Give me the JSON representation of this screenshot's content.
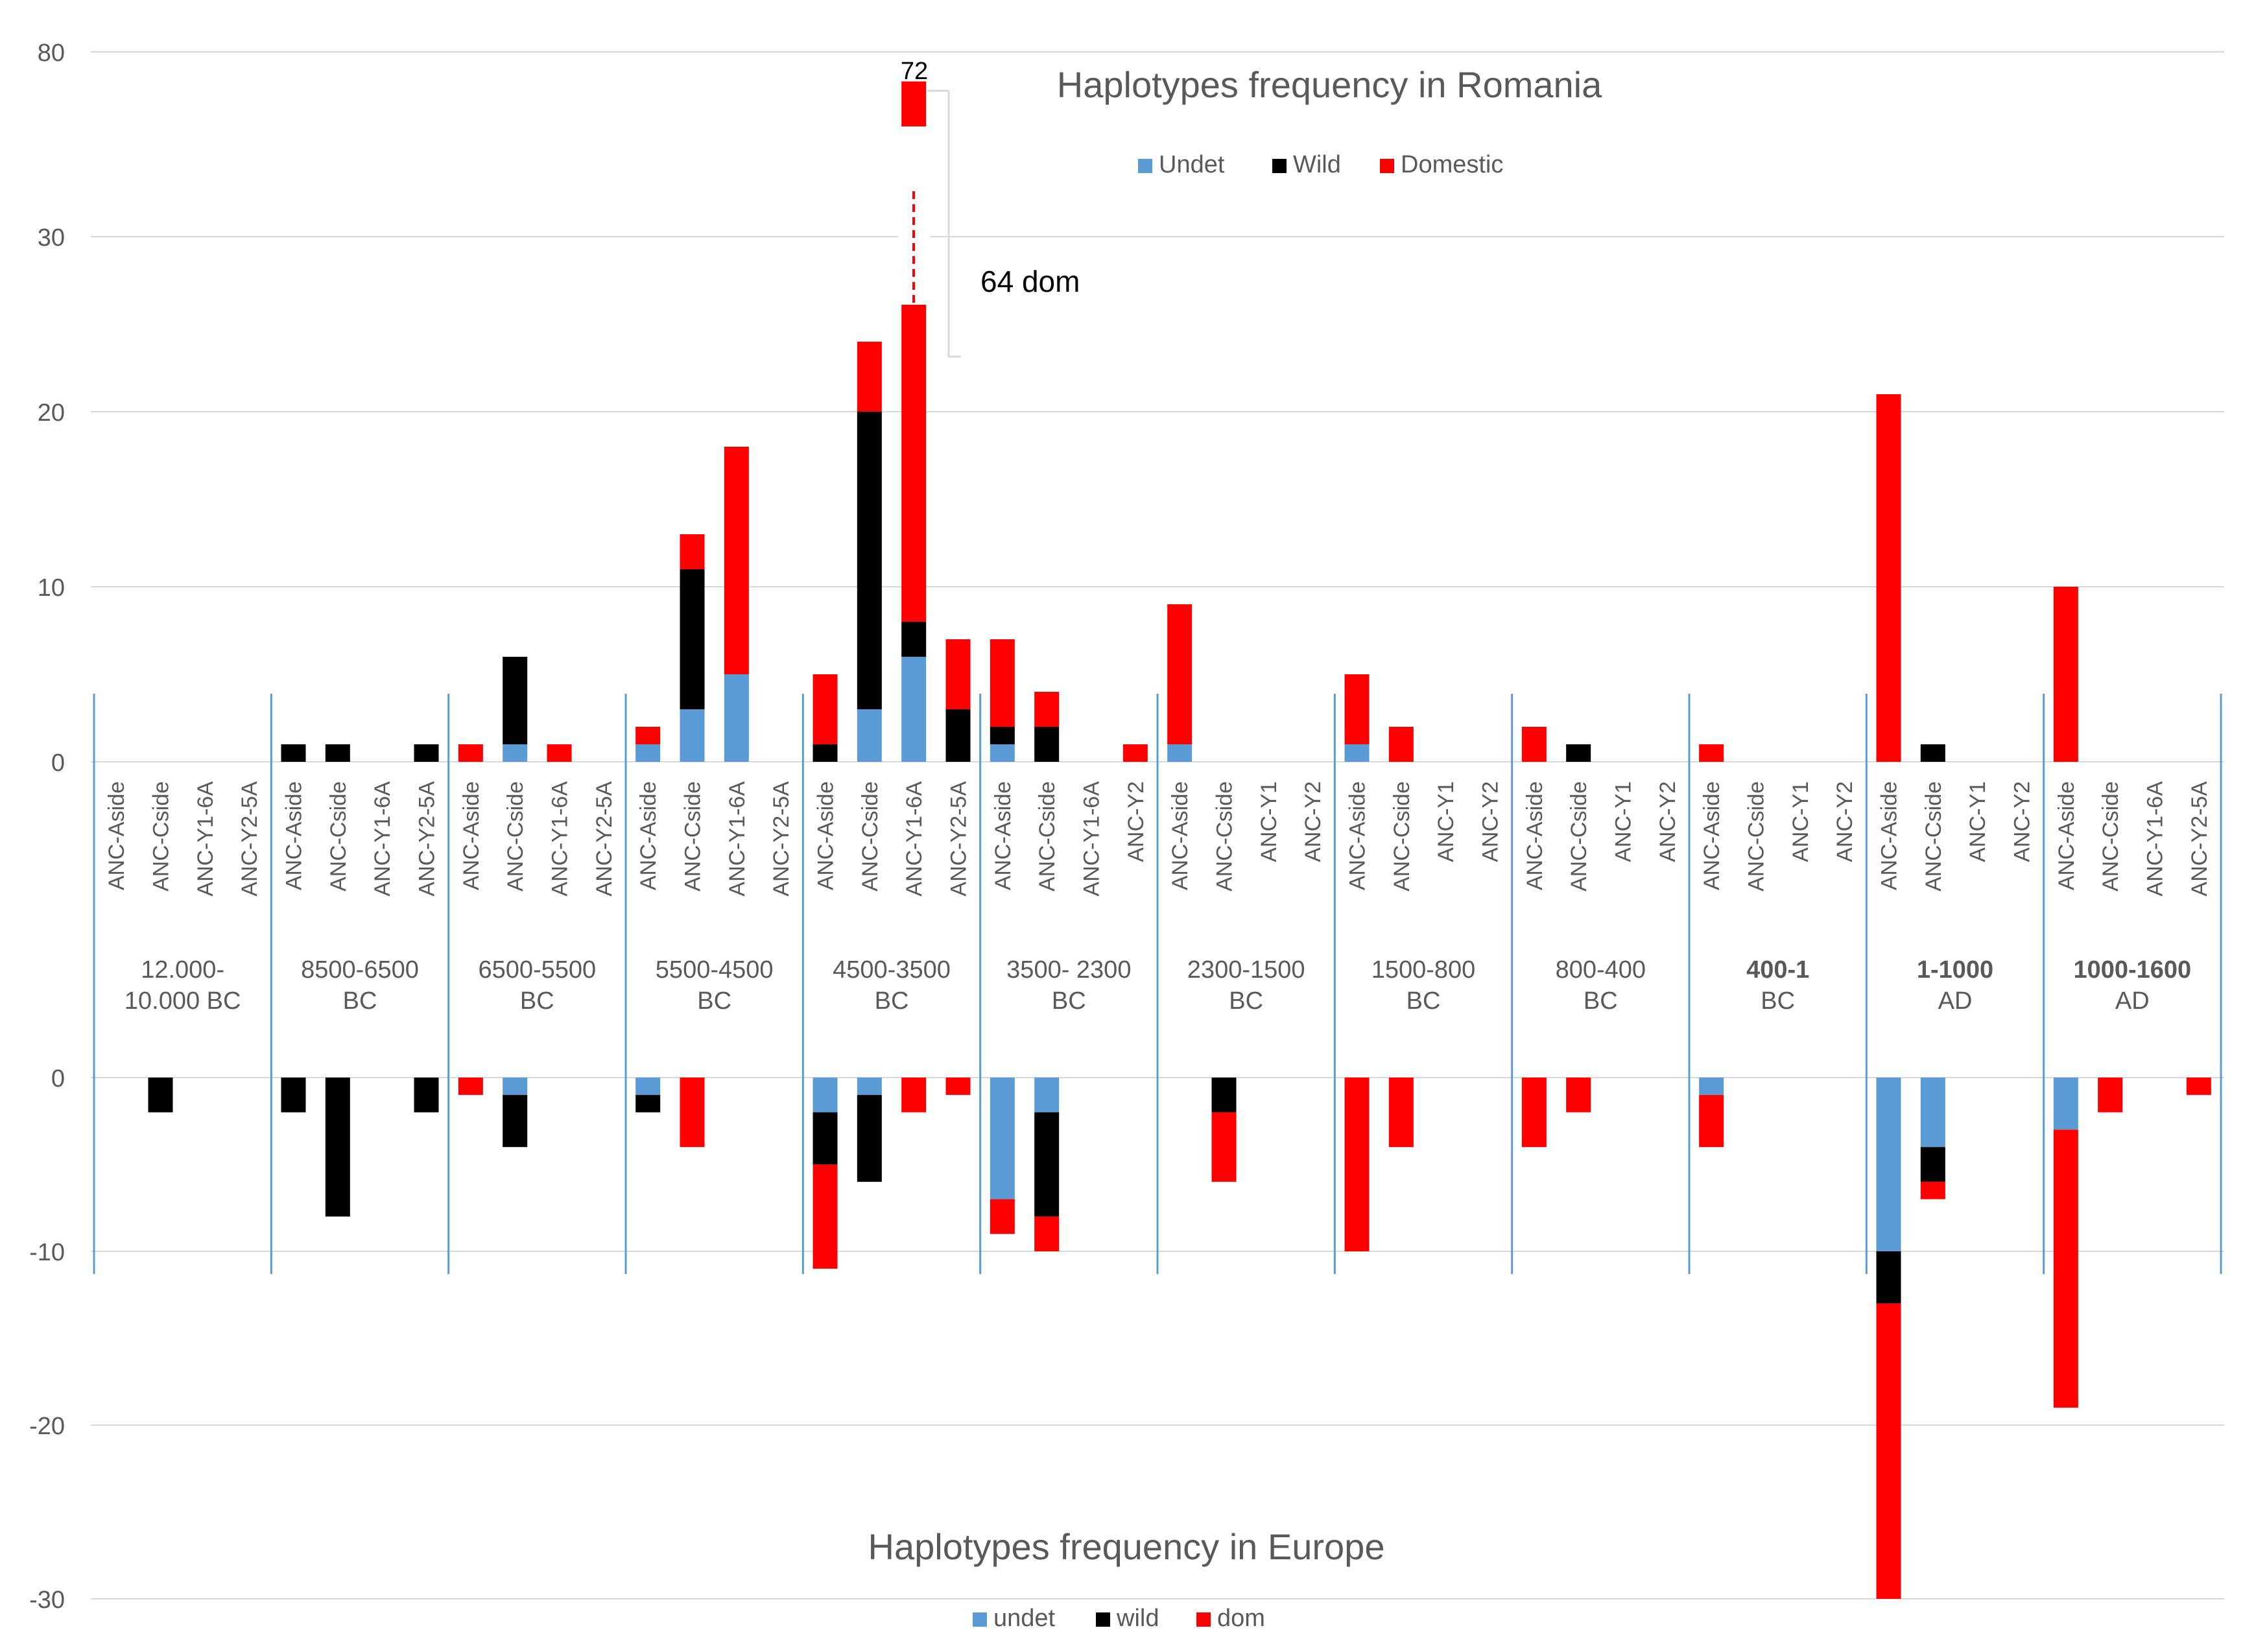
{
  "chart_data": {
    "type": "bar",
    "stacked": true,
    "colors": {
      "undet": "#5b9bd5",
      "wild": "#000000",
      "dom": "#ff0000"
    },
    "periods": [
      {
        "label": [
          "12.000-",
          "10.000 BC"
        ],
        "bold": false,
        "categories": [
          "ANC-Aside",
          "ANC-Cside",
          "ANC-Y1-6A",
          "ANC-Y2-5A"
        ],
        "romania": [
          [
            0,
            0,
            0
          ],
          [
            0,
            0,
            0
          ],
          [
            0,
            0,
            0
          ],
          [
            0,
            0,
            0
          ]
        ],
        "europe": [
          [
            0,
            0,
            0
          ],
          [
            0,
            2,
            0
          ],
          [
            0,
            0,
            0
          ],
          [
            0,
            0,
            0
          ]
        ]
      },
      {
        "label": [
          "8500-6500",
          "BC"
        ],
        "bold": false,
        "categories": [
          "ANC-Aside",
          "ANC-Cside",
          "ANC-Y1-6A",
          "ANC-Y2-5A"
        ],
        "romania": [
          [
            0,
            1,
            0
          ],
          [
            0,
            1,
            0
          ],
          [
            0,
            0,
            0
          ],
          [
            0,
            1,
            0
          ]
        ],
        "europe": [
          [
            0,
            2,
            0
          ],
          [
            0,
            8,
            0
          ],
          [
            0,
            0,
            0
          ],
          [
            0,
            2,
            0
          ]
        ]
      },
      {
        "label": [
          "6500-5500",
          "BC"
        ],
        "bold": false,
        "categories": [
          "ANC-Aside",
          "ANC-Cside",
          "ANC-Y1-6A",
          "ANC-Y2-5A"
        ],
        "romania": [
          [
            0,
            0,
            1
          ],
          [
            1,
            5,
            0
          ],
          [
            0,
            0,
            1
          ],
          [
            0,
            0,
            0
          ]
        ],
        "europe": [
          [
            0,
            0,
            1
          ],
          [
            1,
            3,
            0
          ],
          [
            0,
            0,
            0
          ],
          [
            0,
            0,
            0
          ]
        ]
      },
      {
        "label": [
          "5500-4500",
          "BC"
        ],
        "bold": false,
        "categories": [
          "ANC-Aside",
          "ANC-Cside",
          "ANC-Y1-6A",
          "ANC-Y2-5A"
        ],
        "romania": [
          [
            1,
            0,
            1
          ],
          [
            3,
            8,
            2
          ],
          [
            5,
            0,
            13
          ],
          [
            0,
            0,
            0
          ]
        ],
        "europe": [
          [
            1,
            1,
            0
          ],
          [
            0,
            0,
            4
          ],
          [
            0,
            0,
            0
          ],
          [
            0,
            0,
            0
          ]
        ]
      },
      {
        "label": [
          "4500-3500",
          "BC"
        ],
        "bold": false,
        "categories": [
          "ANC-Aside",
          "ANC-Cside",
          "ANC-Y1-6A",
          "ANC-Y2-5A"
        ],
        "romania": [
          [
            0,
            1,
            4
          ],
          [
            3,
            17,
            4
          ],
          [
            6,
            2,
            64
          ],
          [
            0,
            3,
            4
          ]
        ],
        "europe": [
          [
            2,
            3,
            6
          ],
          [
            1,
            5,
            0
          ],
          [
            0,
            0,
            2
          ],
          [
            0,
            0,
            1
          ]
        ]
      },
      {
        "label": [
          "3500- 2300",
          "BC"
        ],
        "bold": false,
        "categories": [
          "ANC-Aside",
          "ANC-Cside",
          "ANC-Y1-6A",
          "ANC-Y2"
        ],
        "romania": [
          [
            1,
            1,
            5
          ],
          [
            0,
            2,
            2
          ],
          [
            0,
            0,
            0
          ],
          [
            0,
            0,
            1
          ]
        ],
        "europe": [
          [
            7,
            0,
            2
          ],
          [
            2,
            6,
            2
          ],
          [
            0,
            0,
            0
          ],
          [
            0,
            0,
            0
          ]
        ]
      },
      {
        "label": [
          "2300-1500",
          "BC"
        ],
        "bold": false,
        "categories": [
          "ANC-Aside",
          "ANC-Cside",
          "ANC-Y1",
          "ANC-Y2"
        ],
        "romania": [
          [
            1,
            0,
            8
          ],
          [
            0,
            0,
            0
          ],
          [
            0,
            0,
            0
          ],
          [
            0,
            0,
            0
          ]
        ],
        "europe": [
          [
            0,
            0,
            0
          ],
          [
            0,
            2,
            4
          ],
          [
            0,
            0,
            0
          ],
          [
            0,
            0,
            0
          ]
        ]
      },
      {
        "label": [
          "1500-800",
          "BC"
        ],
        "bold": false,
        "categories": [
          "ANC-Aside",
          "ANC-Cside",
          "ANC-Y1",
          "ANC-Y2"
        ],
        "romania": [
          [
            1,
            0,
            4
          ],
          [
            0,
            0,
            2
          ],
          [
            0,
            0,
            0
          ],
          [
            0,
            0,
            0
          ]
        ],
        "europe": [
          [
            0,
            0,
            10
          ],
          [
            0,
            0,
            4
          ],
          [
            0,
            0,
            0
          ],
          [
            0,
            0,
            0
          ]
        ]
      },
      {
        "label": [
          "800-400",
          "BC"
        ],
        "bold": false,
        "categories": [
          "ANC-Aside",
          "ANC-Cside",
          "ANC-Y1",
          "ANC-Y2"
        ],
        "romania": [
          [
            0,
            0,
            2
          ],
          [
            0,
            1,
            0
          ],
          [
            0,
            0,
            0
          ],
          [
            0,
            0,
            0
          ]
        ],
        "europe": [
          [
            0,
            0,
            4
          ],
          [
            0,
            0,
            2
          ],
          [
            0,
            0,
            0
          ],
          [
            0,
            0,
            0
          ]
        ]
      },
      {
        "label": [
          "400-1",
          "BC"
        ],
        "bold": true,
        "categories": [
          "ANC-Aside",
          "ANC-Cside",
          "ANC-Y1",
          "ANC-Y2"
        ],
        "romania": [
          [
            0,
            0,
            1
          ],
          [
            0,
            0,
            0
          ],
          [
            0,
            0,
            0
          ],
          [
            0,
            0,
            0
          ]
        ],
        "europe": [
          [
            1,
            0,
            3
          ],
          [
            0,
            0,
            0
          ],
          [
            0,
            0,
            0
          ],
          [
            0,
            0,
            0
          ]
        ]
      },
      {
        "label": [
          "1-1000",
          "AD"
        ],
        "bold": true,
        "categories": [
          "ANC-Aside",
          "ANC-Cside",
          "ANC-Y1",
          "ANC-Y2"
        ],
        "romania": [
          [
            0,
            0,
            21
          ],
          [
            0,
            1,
            0
          ],
          [
            0,
            0,
            0
          ],
          [
            0,
            0,
            0
          ]
        ],
        "europe": [
          [
            10,
            3,
            17
          ],
          [
            4,
            2,
            1
          ],
          [
            0,
            0,
            0
          ],
          [
            0,
            0,
            0
          ]
        ]
      },
      {
        "label": [
          "1000-1600",
          "AD"
        ],
        "bold": true,
        "categories": [
          "ANC-Aside",
          "ANC-Cside",
          "ANC-Y1-6A",
          "ANC-Y2-5A"
        ],
        "romania": [
          [
            0,
            0,
            10
          ],
          [
            0,
            0,
            0
          ],
          [
            0,
            0,
            0
          ],
          [
            0,
            0,
            0
          ]
        ],
        "europe": [
          [
            3,
            0,
            16
          ],
          [
            0,
            0,
            2
          ],
          [
            0,
            0,
            0
          ],
          [
            0,
            0,
            1
          ]
        ]
      }
    ],
    "top": {
      "title": "Haplotypes frequency in Romania",
      "ylim": [
        0,
        80
      ],
      "ytick_labels": [
        "0",
        "10",
        "20",
        "30",
        "80"
      ],
      "axis_break": "values above 30 compressed (break at 30-80)",
      "legend": [
        "Undet",
        "Wild",
        "Domestic"
      ],
      "annotation_value": "72",
      "annotation_text": "64 dom"
    },
    "bottom": {
      "title": "Haplotypes frequency in Europe",
      "ylim": [
        -30,
        0
      ],
      "ytick_labels": [
        "0",
        "-10",
        "-20",
        "-30"
      ],
      "legend": [
        "undet",
        "wild",
        "dom"
      ]
    }
  }
}
